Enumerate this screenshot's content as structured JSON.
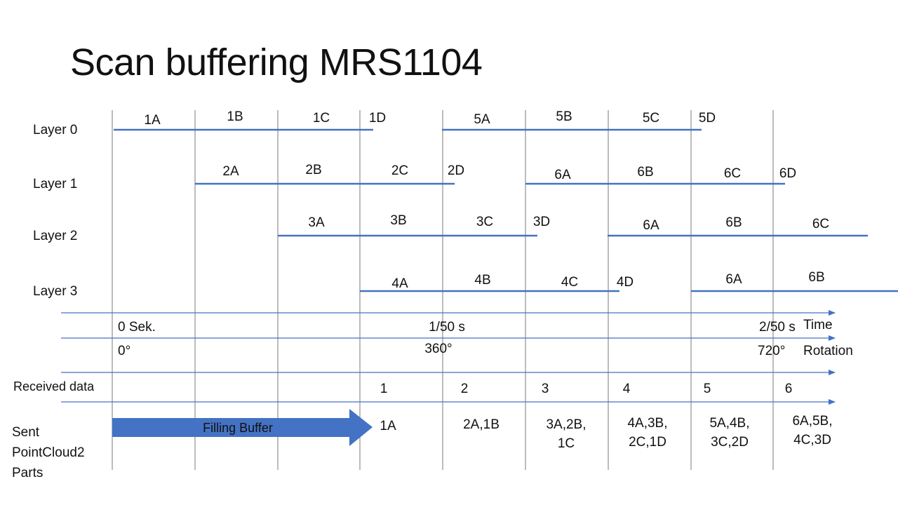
{
  "title": "Scan buffering MRS1104",
  "colors": {
    "line": "#4472c4",
    "arrow": "#4472c4",
    "text": "#111111"
  },
  "layers": [
    {
      "label": "Layer 0",
      "segments": [
        {
          "labels": [
            "1A",
            "1B",
            "1C",
            "1D"
          ]
        },
        {
          "labels": [
            "5A",
            "5B",
            "5C",
            "5D"
          ]
        }
      ]
    },
    {
      "label": "Layer 1",
      "segments": [
        {
          "labels": [
            "2A",
            "2B",
            "2C",
            "2D"
          ]
        },
        {
          "labels": [
            "6A",
            "6B",
            "6C",
            "6D"
          ]
        }
      ]
    },
    {
      "label": "Layer 2",
      "segments": [
        {
          "labels": [
            "3A",
            "3B",
            "3C",
            "3D"
          ]
        },
        {
          "labels": [
            "6A",
            "6B",
            "6C"
          ]
        }
      ]
    },
    {
      "label": "Layer 3",
      "segments": [
        {
          "labels": [
            "4A",
            "4B",
            "4C",
            "4D"
          ]
        },
        {
          "labels": [
            "6A",
            "6B"
          ]
        }
      ]
    }
  ],
  "time_axis": {
    "name": "Time",
    "ticks": [
      "0 Sek.",
      "1/50 s",
      "2/50 s"
    ]
  },
  "rotation_axis": {
    "name": "Rotation",
    "ticks": [
      "0°",
      "360°",
      "720°"
    ]
  },
  "received": {
    "label": "Received data",
    "values": [
      "1",
      "2",
      "3",
      "4",
      "5",
      "6"
    ]
  },
  "sent": {
    "label_lines": [
      "Sent",
      "PointCloud2",
      "Parts"
    ],
    "filling_label": "Filling Buffer",
    "values": [
      [
        "1A"
      ],
      [
        "2A,1B"
      ],
      [
        "3A,2B,",
        "1C"
      ],
      [
        "4A,3B,",
        "2C,1D"
      ],
      [
        "5A,4B,",
        "3C,2D"
      ],
      [
        "6A,5B,",
        "4C,3D"
      ]
    ]
  }
}
